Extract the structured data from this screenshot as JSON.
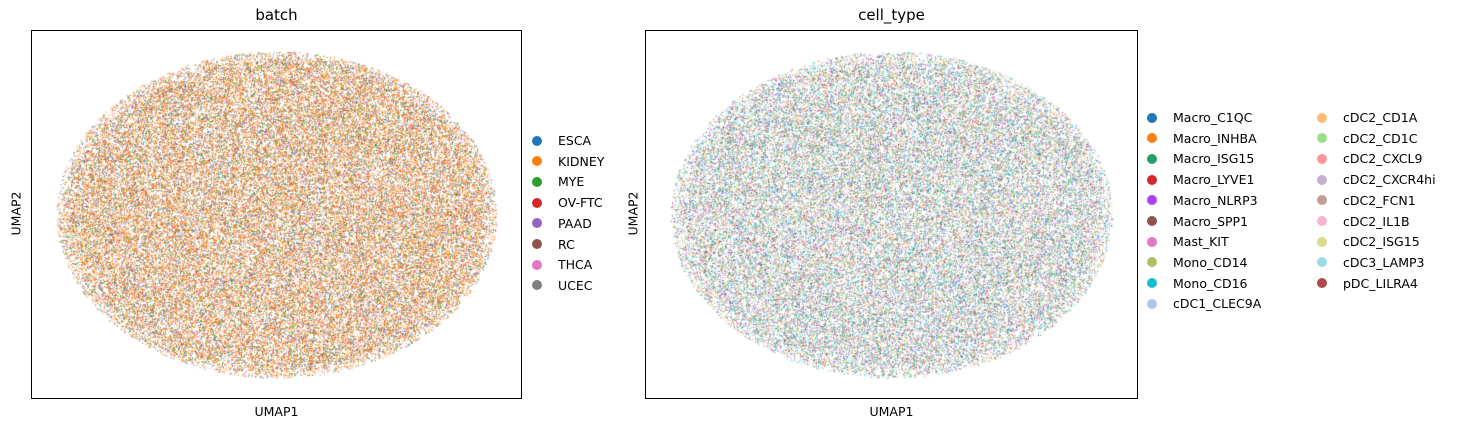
{
  "chart_data": [
    {
      "type": "scatter",
      "title": "batch",
      "xlabel": "UMAP1",
      "ylabel": "UMAP2",
      "legend_placement": "right",
      "categories": [
        "ESCA",
        "KIDNEY",
        "MYE",
        "OV-FTC",
        "PAAD",
        "RC",
        "THCA",
        "UCEC"
      ],
      "colors": [
        "#1f77b4",
        "#ff7f0e",
        "#2ca02c",
        "#d62728",
        "#9467bd",
        "#8c564b",
        "#e377c2",
        "#7f7f7f"
      ],
      "weights": [
        0.08,
        0.55,
        0.12,
        0.05,
        0.06,
        0.06,
        0.03,
        0.05
      ]
    },
    {
      "type": "scatter",
      "title": "cell_type",
      "xlabel": "UMAP1",
      "ylabel": "UMAP2",
      "legend_placement": "right",
      "categories": [
        "Macro_C1QC",
        "Macro_INHBA",
        "Macro_ISG15",
        "Macro_LYVE1",
        "Macro_NLRP3",
        "Macro_SPP1",
        "Mast_KIT",
        "Mono_CD14",
        "Mono_CD16",
        "cDC1_CLEC9A",
        "cDC2_CD1A",
        "cDC2_CD1C",
        "cDC2_CXCL9",
        "cDC2_CXCR4hi",
        "cDC2_FCN1",
        "cDC2_IL1B",
        "cDC2_ISG15",
        "cDC3_LAMP3",
        "pDC_LILRA4"
      ],
      "colors": [
        "#1f77b4",
        "#ff7f0e",
        "#279e68",
        "#d62728",
        "#aa40fc",
        "#8c564b",
        "#e377c2",
        "#b5bd61",
        "#17becf",
        "#aec7e8",
        "#ffbb78",
        "#98df8a",
        "#ff9896",
        "#c5b0d5",
        "#c49c94",
        "#f7b6d2",
        "#dbdb8d",
        "#9edae5",
        "#ad494a"
      ],
      "weights": [
        0.08,
        0.04,
        0.08,
        0.03,
        0.05,
        0.04,
        0.03,
        0.06,
        0.09,
        0.06,
        0.05,
        0.07,
        0.04,
        0.05,
        0.04,
        0.04,
        0.05,
        0.11,
        0.03
      ]
    }
  ]
}
